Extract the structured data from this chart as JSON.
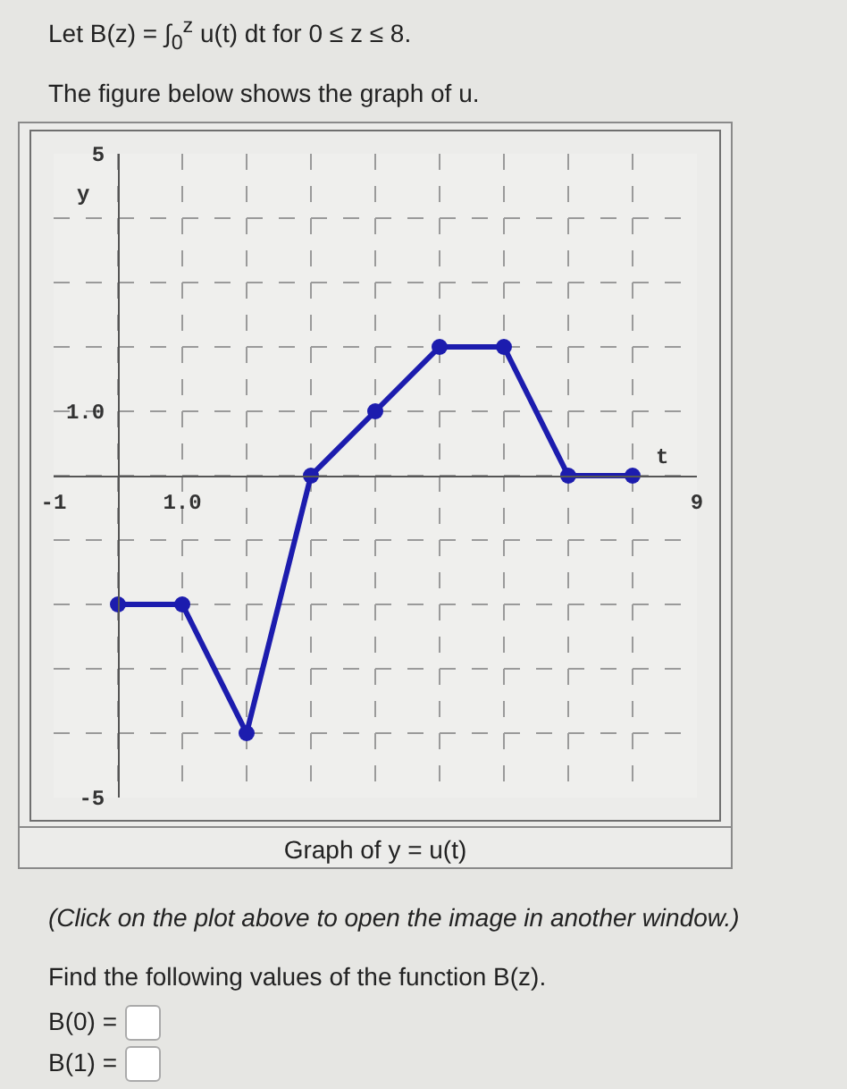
{
  "chart_data": {
    "type": "line",
    "title": "Let B(z) = ∫$_{0}$$^{z}$ u(t) dt for 0 ≤ z ≤ 8.",
    "subtitle": "The figure below shows the graph of u.",
    "xlabel": "t",
    "ylabel": "y",
    "x": [
      0,
      1,
      2,
      3,
      4,
      5,
      6,
      7,
      8
    ],
    "values": [
      -2,
      -2,
      -4,
      0,
      1,
      2,
      2,
      0,
      0
    ],
    "color": "#1c1cae",
    "xlim": [
      -1,
      9
    ],
    "ylim": [
      -5,
      5
    ],
    "xticks": [
      -1,
      {
        "value": 0,
        "label": null
      },
      {
        "value": 1,
        "label": "1.0"
      },
      {
        "value": 2,
        "label": null
      },
      {
        "value": 3,
        "label": null
      },
      {
        "value": 4,
        "label": null
      },
      {
        "value": 5,
        "label": null
      },
      {
        "value": 6,
        "label": null
      },
      {
        "value": 7,
        "label": null
      },
      {
        "value": 8,
        "label": null
      },
      9
    ],
    "yticks": [
      -5,
      {
        "value": -4,
        "label": null
      },
      {
        "value": -3,
        "label": null
      },
      {
        "value": -2,
        "label": null
      },
      {
        "value": -1,
        "label": null
      },
      {
        "value": 0,
        "label": null
      },
      {
        "value": 1,
        "label": "1.0"
      },
      {
        "value": 2,
        "label": null
      },
      {
        "value": 3,
        "label": null
      },
      {
        "value": 4,
        "label": null
      },
      5
    ],
    "grid": true,
    "marker": "circle",
    "line_style": "solid",
    "annotations": [
      "Graph of y = u(t)",
      "(Click on the plot above to open the image in another window.)",
      "Find the following values of the function B(z).",
      "B(0) =",
      "B(1) ="
    ]
  }
}
